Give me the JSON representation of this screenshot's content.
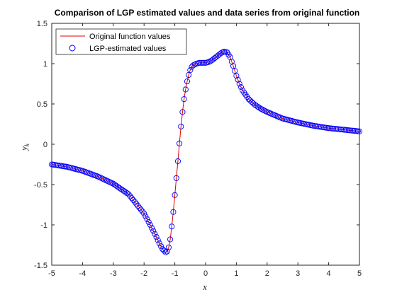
{
  "chart_data": {
    "type": "line",
    "title": "Comparison of LGP estimated values and data series from original function",
    "xlabel": "x",
    "ylabel": "y",
    "ylabel_subscript": "k",
    "xlim": [
      -5,
      5
    ],
    "ylim": [
      -1.5,
      1.5
    ],
    "xticks": [
      -5,
      -4,
      -3,
      -2,
      -1,
      0,
      1,
      2,
      3,
      4,
      5
    ],
    "yticks": [
      -1.5,
      -1,
      -0.5,
      0,
      0.5,
      1,
      1.5
    ],
    "grid": false,
    "legend_position": "top-left",
    "series": [
      {
        "name": "Original function values",
        "style": "line",
        "color": "#e00000",
        "x": [
          -5.0,
          -4.5,
          -4.0,
          -3.5,
          -3.0,
          -2.5,
          -2.0,
          -1.8,
          -1.6,
          -1.5,
          -1.4,
          -1.3,
          -1.25,
          -1.2,
          -1.15,
          -1.1,
          -1.05,
          -1.0,
          -0.95,
          -0.9,
          -0.85,
          -0.8,
          -0.75,
          -0.7,
          -0.65,
          -0.6,
          -0.55,
          -0.5,
          -0.45,
          -0.4,
          -0.35,
          -0.3,
          -0.2,
          -0.1,
          0.0,
          0.1,
          0.2,
          0.3,
          0.4,
          0.5,
          0.6,
          0.7,
          0.8,
          0.9,
          1.0,
          1.1,
          1.2,
          1.4,
          1.6,
          1.8,
          2.0,
          2.5,
          3.0,
          3.5,
          4.0,
          4.5,
          5.0
        ],
        "y": [
          -0.25,
          -0.28,
          -0.33,
          -0.4,
          -0.49,
          -0.62,
          -0.86,
          -1.0,
          -1.15,
          -1.23,
          -1.3,
          -1.34,
          -1.33,
          -1.28,
          -1.18,
          -1.02,
          -0.84,
          -0.63,
          -0.42,
          -0.21,
          0.01,
          0.22,
          0.4,
          0.56,
          0.68,
          0.78,
          0.86,
          0.92,
          0.96,
          0.98,
          0.99,
          1.0,
          1.01,
          1.01,
          1.01,
          1.02,
          1.04,
          1.07,
          1.1,
          1.13,
          1.15,
          1.14,
          1.08,
          0.97,
          0.85,
          0.75,
          0.67,
          0.56,
          0.49,
          0.44,
          0.4,
          0.32,
          0.27,
          0.23,
          0.2,
          0.18,
          0.16
        ]
      },
      {
        "name": "LGP-estimated values",
        "style": "marker",
        "marker": "circle",
        "color": "#0000ff"
      }
    ]
  }
}
